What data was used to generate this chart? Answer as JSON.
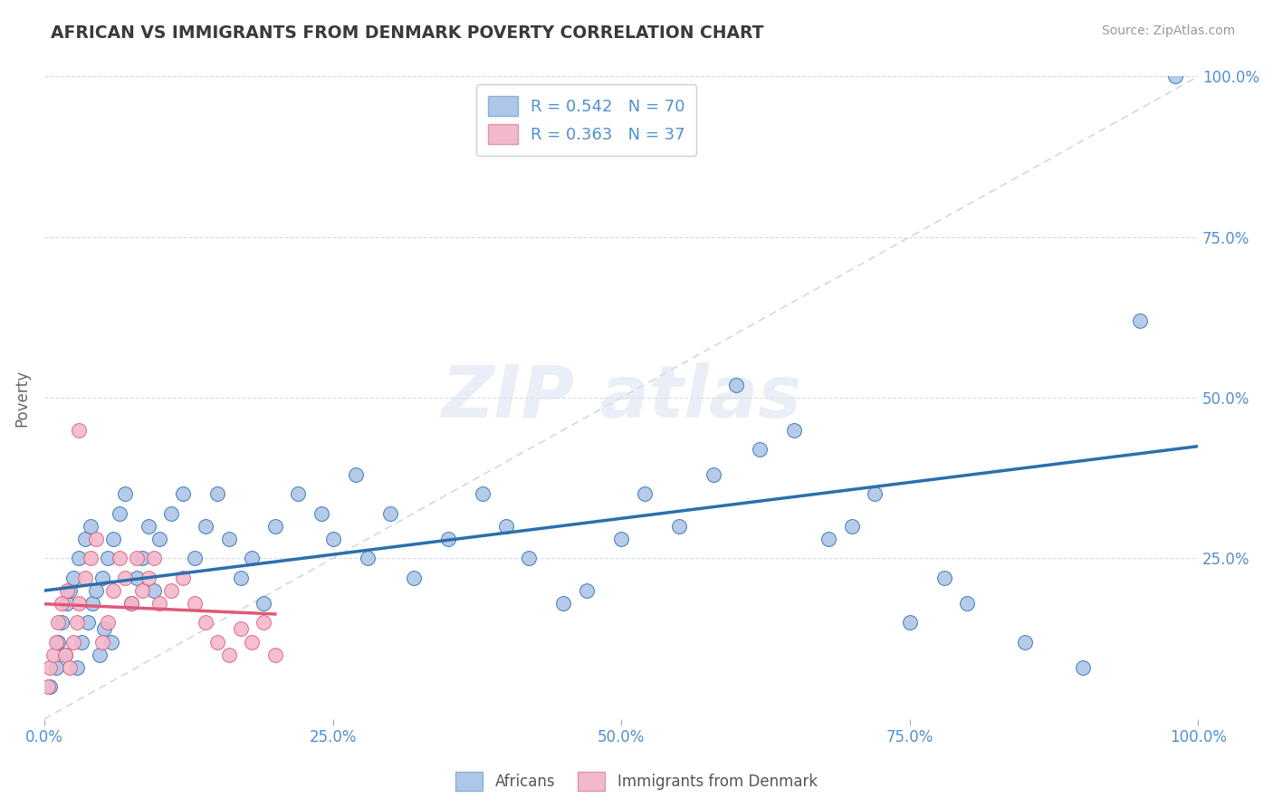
{
  "title": "AFRICAN VS IMMIGRANTS FROM DENMARK POVERTY CORRELATION CHART",
  "source": "Source: ZipAtlas.com",
  "ylabel": "Poverty",
  "r_african": 0.542,
  "n_african": 70,
  "r_denmark": 0.363,
  "n_denmark": 37,
  "african_color": "#aec6e8",
  "denmark_color": "#f2b8cc",
  "african_line_color": "#2c6fad",
  "denmark_line_color": "#e05878",
  "background_color": "#ffffff",
  "grid_color": "#d4dce8",
  "legend_label_african": "Africans",
  "legend_label_denmark": "Immigrants from Denmark",
  "ref_line_color": "#c8ccd8",
  "tick_color": "#5090d0",
  "african_x": [
    0.5,
    1.0,
    1.2,
    1.5,
    1.8,
    2.0,
    2.2,
    2.5,
    2.8,
    3.0,
    3.2,
    3.5,
    3.8,
    4.0,
    4.2,
    4.5,
    4.8,
    5.0,
    5.2,
    5.5,
    5.8,
    6.0,
    6.5,
    7.0,
    7.5,
    8.0,
    8.5,
    9.0,
    9.5,
    10.0,
    11.0,
    12.0,
    13.0,
    14.0,
    15.0,
    16.0,
    17.0,
    18.0,
    19.0,
    20.0,
    22.0,
    24.0,
    25.0,
    27.0,
    28.0,
    30.0,
    32.0,
    35.0,
    38.0,
    40.0,
    42.0,
    45.0,
    47.0,
    50.0,
    52.0,
    55.0,
    58.0,
    60.0,
    62.0,
    65.0,
    68.0,
    70.0,
    72.0,
    75.0,
    78.0,
    80.0,
    85.0,
    90.0,
    95.0,
    98.0
  ],
  "african_y": [
    5,
    8,
    12,
    15,
    10,
    18,
    20,
    22,
    8,
    25,
    12,
    28,
    15,
    30,
    18,
    20,
    10,
    22,
    14,
    25,
    12,
    28,
    32,
    35,
    18,
    22,
    25,
    30,
    20,
    28,
    32,
    35,
    25,
    30,
    35,
    28,
    22,
    25,
    18,
    30,
    35,
    32,
    28,
    38,
    25,
    32,
    22,
    28,
    35,
    30,
    25,
    18,
    20,
    28,
    35,
    30,
    38,
    52,
    42,
    45,
    28,
    30,
    35,
    15,
    22,
    18,
    12,
    8,
    62,
    100
  ],
  "denmark_x": [
    0.3,
    0.5,
    0.8,
    1.0,
    1.2,
    1.5,
    1.8,
    2.0,
    2.2,
    2.5,
    2.8,
    3.0,
    3.5,
    4.0,
    4.5,
    5.0,
    5.5,
    6.0,
    6.5,
    7.0,
    7.5,
    8.0,
    8.5,
    9.0,
    9.5,
    10.0,
    11.0,
    12.0,
    13.0,
    14.0,
    15.0,
    16.0,
    17.0,
    18.0,
    19.0,
    20.0,
    3.0
  ],
  "denmark_y": [
    5,
    8,
    10,
    12,
    15,
    18,
    10,
    20,
    8,
    12,
    15,
    18,
    22,
    25,
    28,
    12,
    15,
    20,
    25,
    22,
    18,
    25,
    20,
    22,
    25,
    18,
    20,
    22,
    18,
    15,
    12,
    10,
    14,
    12,
    15,
    10,
    45
  ]
}
